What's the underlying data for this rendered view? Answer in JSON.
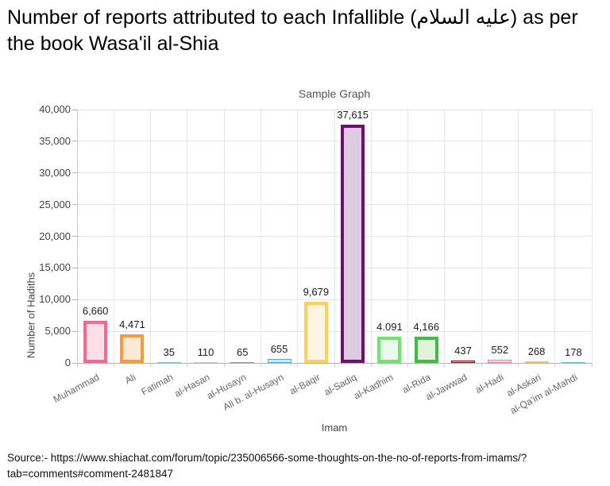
{
  "page": {
    "title": "Number of reports attributed to each Infallible (عليه السلام) as per the book Wasa'il al-Shia",
    "source_lines": [
      "Source:- https://www.shiachat.com/forum/topic/235006566-some-thoughts-on-the-no-of-reports-from-imams/?",
      "tab=comments#comment-2481847"
    ]
  },
  "chart_data": {
    "type": "bar",
    "title": "Sample Graph",
    "xlabel": "Imam",
    "ylabel": "Number of Hadiths",
    "ylim": [
      0,
      40000
    ],
    "grid": true,
    "legend": "none",
    "categories": [
      "Muhammad",
      "Ali",
      "Fatimah",
      "al-Hasan",
      "al-Husayn",
      "Ali b. al-Husayn",
      "al-Baqir",
      "al-Sadiq",
      "al-Kadhim",
      "al-Rida",
      "al-Jawwad",
      "al-Hadi",
      "al-Askari",
      "al-Qa'im al-Mahdi"
    ],
    "values": [
      6660,
      4471,
      35,
      110,
      65,
      655,
      9679,
      37615,
      4091,
      4166,
      437,
      552,
      268,
      178
    ],
    "value_labels": [
      "6,660",
      "4,471",
      "35",
      "110",
      "65",
      "655",
      "9,679",
      "37,615",
      "4.091",
      "4,166",
      "437",
      "552",
      "268",
      "178"
    ],
    "ytick_values": [
      0,
      5000,
      10000,
      15000,
      20000,
      25000,
      30000,
      35000,
      40000
    ],
    "ytick_labels": [
      "0",
      "5,000",
      "10,000",
      "15,000",
      "20,000",
      "25,000",
      "30,000",
      "35,000",
      "40,000"
    ],
    "bar_colors": [
      {
        "border": "#f9688c",
        "fill": "#fcdfe8"
      },
      {
        "border": "#f89b3c",
        "fill": "#fcebd4"
      },
      {
        "border": "#8cc8c8",
        "fill": "#ddf0f0"
      },
      {
        "border": "#c9c9c9",
        "fill": "#eeeeee"
      },
      {
        "border": "#9a9aa6",
        "fill": "#e6e6ec"
      },
      {
        "border": "#57a7f0",
        "fill": "#d7e9fb"
      },
      {
        "border": "#ffd257",
        "fill": "#fcf5e2"
      },
      {
        "border": "#6e1072",
        "fill": "#dccbe0"
      },
      {
        "border": "#69e869",
        "fill": "#ebfaeb"
      },
      {
        "border": "#42bc42",
        "fill": "#dff3db"
      },
      {
        "border": "#7e1818",
        "fill": "#d6c6c6"
      },
      {
        "border": "#f87b9d",
        "fill": "#fbdce5"
      },
      {
        "border": "#fbbf6a",
        "fill": "#fcefdc"
      },
      {
        "border": "#62c2c2",
        "fill": "#dcf0f0"
      }
    ]
  }
}
